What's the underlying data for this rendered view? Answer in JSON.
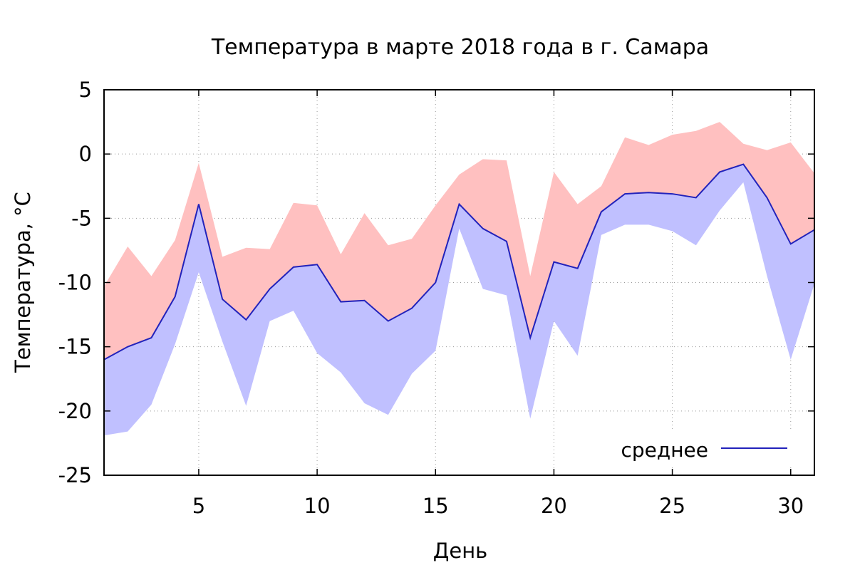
{
  "chart_data": {
    "type": "area",
    "title": "Температура в марте 2018 года в г. Самара",
    "xlabel": "День",
    "ylabel": "Температура, °C",
    "xlim": [
      1,
      31
    ],
    "ylim": [
      -25,
      5
    ],
    "xticks": [
      5,
      10,
      15,
      20,
      25,
      30
    ],
    "yticks": [
      -25,
      -20,
      -15,
      -10,
      -5,
      0,
      5
    ],
    "grid": true,
    "legend_position": "bottom-right",
    "x": [
      1,
      2,
      3,
      4,
      5,
      6,
      7,
      8,
      9,
      10,
      11,
      12,
      13,
      14,
      15,
      16,
      17,
      18,
      19,
      20,
      21,
      22,
      23,
      24,
      25,
      26,
      27,
      28,
      29,
      30,
      31
    ],
    "series": [
      {
        "kind": "band-upper",
        "color": "#ffc0c0",
        "values": [
          -10.3,
          -7.2,
          -9.5,
          -6.7,
          -0.7,
          -8.0,
          -7.3,
          -7.4,
          -3.8,
          -4.0,
          -7.8,
          -4.6,
          -7.1,
          -6.6,
          -4.0,
          -1.6,
          -0.4,
          -0.5,
          -9.5,
          -1.4,
          -3.9,
          -2.5,
          1.3,
          0.7,
          1.5,
          1.8,
          2.5,
          0.8,
          0.3,
          0.9,
          -1.5
        ]
      },
      {
        "name": "среднее",
        "kind": "line",
        "color": "#2222bb",
        "values": [
          -16.0,
          -15.0,
          -14.3,
          -11.1,
          -3.9,
          -11.3,
          -12.9,
          -10.5,
          -8.8,
          -8.6,
          -11.5,
          -11.4,
          -13.0,
          -12.0,
          -10.0,
          -3.9,
          -5.8,
          -6.8,
          -14.3,
          -8.4,
          -8.9,
          -4.5,
          -3.1,
          -3.0,
          -3.1,
          -3.4,
          -1.4,
          -0.8,
          -3.4,
          -7.0,
          -5.9
        ]
      },
      {
        "kind": "band-lower",
        "color": "#c0c0ff",
        "values": [
          -21.9,
          -21.6,
          -19.5,
          -14.8,
          -9.2,
          -14.6,
          -19.6,
          -13.0,
          -12.2,
          -15.5,
          -17.0,
          -19.4,
          -20.3,
          -17.1,
          -15.3,
          -5.8,
          -10.5,
          -11.0,
          -20.6,
          -13.0,
          -15.7,
          -6.3,
          -5.5,
          -5.5,
          -6.0,
          -7.1,
          -4.4,
          -2.2,
          -9.5,
          -16.0,
          -10.1
        ]
      }
    ]
  }
}
